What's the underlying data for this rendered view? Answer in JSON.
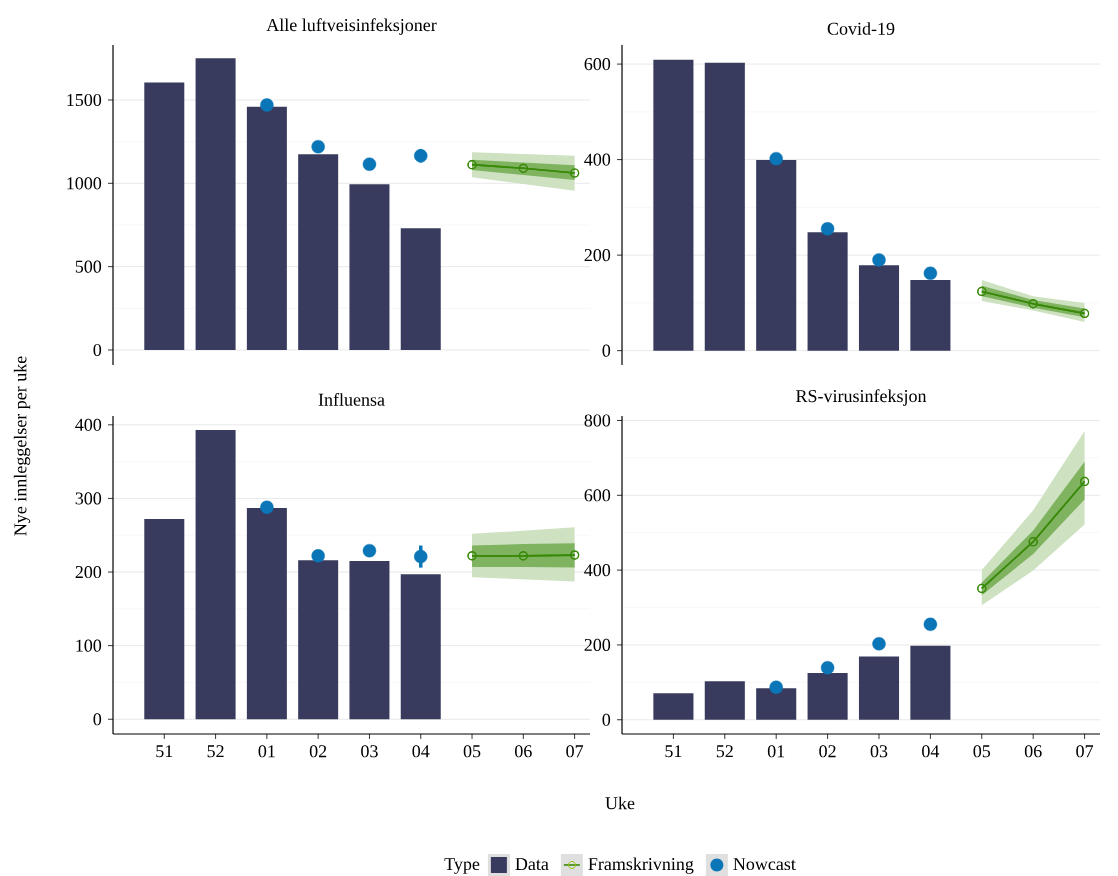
{
  "chart_data": [
    {
      "type": "bar",
      "title": "Alle luftveisinfeksjoner",
      "ylabel": "Nye innleggelser per uke",
      "categories": [
        "51",
        "52",
        "01",
        "02",
        "03",
        "04",
        "05",
        "06",
        "07"
      ],
      "ylim": [
        -90,
        1830
      ],
      "yticks": [
        0,
        500,
        1000,
        1500
      ],
      "grid": "y",
      "tick_labels": "y",
      "series": [
        {
          "color": "#383b5e",
          "values": [
            1605,
            1750,
            1460,
            1175,
            995,
            730,
            null,
            null,
            null
          ]
        },
        {
          "type": "line",
          "color": "#3a8a0a",
          "marker": "circle",
          "values": [
            null,
            null,
            null,
            null,
            null,
            null,
            1112,
            1090,
            1062
          ],
          "lower": [
            null,
            null,
            null,
            null,
            null,
            null,
            1036,
            996,
            956
          ],
          "upper": [
            null,
            null,
            null,
            null,
            null,
            null,
            1186,
            1176,
            1166
          ]
        },
        {
          "type": "line",
          "color": "#3a8a0a",
          "marker": "circle",
          "values": [
            null,
            null,
            null,
            null,
            null,
            null,
            1112,
            1090,
            1062
          ],
          "lower": [
            null,
            null,
            null,
            null,
            null,
            null,
            1080,
            1050,
            1020
          ],
          "upper": [
            null,
            null,
            null,
            null,
            null,
            null,
            1142,
            1125,
            1108
          ]
        },
        {
          "type": "scatter",
          "color": "#0b76b7",
          "values": [
            null,
            null,
            1470,
            1220,
            1115,
            1165,
            null,
            null,
            null
          ],
          "errors": [
            null,
            null,
            null,
            null,
            null,
            [
              1125,
              1205
            ],
            null,
            null,
            null
          ]
        }
      ]
    },
    {
      "type": "bar",
      "title": "Covid-19",
      "categories": [
        "51",
        "52",
        "01",
        "02",
        "03",
        "04",
        "05",
        "06",
        "07"
      ],
      "ylim": [
        -30,
        640
      ],
      "yticks": [
        0,
        200,
        400,
        600
      ],
      "grid": "y",
      "tick_labels": "y",
      "series": [
        {
          "color": "#383b5e",
          "values": [
            609,
            603,
            399,
            248,
            179,
            148,
            null,
            null,
            null
          ]
        },
        {
          "type": "line",
          "color": "#3a8a0a",
          "marker": "circle",
          "values": [
            null,
            null,
            null,
            null,
            null,
            null,
            124,
            98,
            78
          ],
          "lower": [
            null,
            null,
            null,
            null,
            null,
            null,
            104,
            84,
            60
          ],
          "upper": [
            null,
            null,
            null,
            null,
            null,
            null,
            148,
            114,
            100
          ]
        },
        {
          "type": "line",
          "color": "#3a8a0a",
          "marker": "circle",
          "values": [
            null,
            null,
            null,
            null,
            null,
            null,
            124,
            98,
            78
          ],
          "lower": [
            null,
            null,
            null,
            null,
            null,
            null,
            114,
            90,
            70
          ],
          "upper": [
            null,
            null,
            null,
            null,
            null,
            null,
            136,
            106,
            88
          ]
        },
        {
          "type": "scatter",
          "color": "#0b76b7",
          "values": [
            null,
            null,
            402,
            255,
            190,
            162,
            null,
            null,
            null
          ]
        }
      ]
    },
    {
      "type": "bar",
      "title": "Influensa",
      "xlabel": "Uke",
      "categories": [
        "51",
        "52",
        "01",
        "02",
        "03",
        "04",
        "05",
        "06",
        "07"
      ],
      "ylim": [
        -20,
        412
      ],
      "yticks": [
        0,
        100,
        200,
        300,
        400
      ],
      "grid": "y",
      "series": [
        {
          "color": "#383b5e",
          "values": [
            272,
            393,
            287,
            216,
            215,
            197,
            null,
            null,
            null
          ]
        },
        {
          "type": "line",
          "color": "#3a8a0a",
          "marker": "circle",
          "values": [
            null,
            null,
            null,
            null,
            null,
            null,
            222,
            222,
            223
          ],
          "lower": [
            null,
            null,
            null,
            null,
            null,
            null,
            193,
            190,
            187
          ],
          "upper": [
            null,
            null,
            null,
            null,
            null,
            null,
            252,
            256,
            261
          ]
        },
        {
          "type": "line",
          "color": "#3a8a0a",
          "marker": "circle",
          "values": [
            null,
            null,
            null,
            null,
            null,
            null,
            222,
            222,
            223
          ],
          "lower": [
            null,
            null,
            null,
            null,
            null,
            null,
            207,
            207,
            206
          ],
          "upper": [
            null,
            null,
            null,
            null,
            null,
            null,
            236,
            238,
            239
          ]
        },
        {
          "type": "scatter",
          "color": "#0b76b7",
          "values": [
            null,
            null,
            288,
            222,
            229,
            221,
            null,
            null,
            null
          ],
          "errors": [
            null,
            null,
            null,
            null,
            null,
            [
              206,
              236
            ],
            null,
            null,
            null
          ]
        }
      ]
    },
    {
      "type": "bar",
      "title": "RS-virusinfeksjon",
      "legend": "bottom",
      "legend_title": "Type",
      "categories": [
        "51",
        "52",
        "01",
        "02",
        "03",
        "04",
        "05",
        "06",
        "07"
      ],
      "ylim": [
        -38,
        812
      ],
      "yticks": [
        0,
        200,
        400,
        600,
        800
      ],
      "grid": "y",
      "series": [
        {
          "name": "Data",
          "color": "#383b5e",
          "values": [
            71,
            103,
            84,
            125,
            169,
            198,
            null,
            null,
            null
          ]
        },
        {
          "type": "line",
          "color": "#3a8a0a",
          "marker": "circle",
          "values": [
            null,
            null,
            null,
            null,
            null,
            null,
            351,
            476,
            637
          ],
          "lower": [
            null,
            null,
            null,
            null,
            null,
            null,
            306,
            399,
            522
          ],
          "upper": [
            null,
            null,
            null,
            null,
            null,
            null,
            400,
            560,
            772
          ]
        },
        {
          "name": "Framskrivning",
          "type": "line",
          "color": "#3a8a0a",
          "marker": "circle",
          "values": [
            null,
            null,
            null,
            null,
            null,
            null,
            351,
            476,
            637
          ],
          "lower": [
            null,
            null,
            null,
            null,
            null,
            null,
            333,
            443,
            589
          ],
          "upper": [
            null,
            null,
            null,
            null,
            null,
            null,
            367,
            506,
            690
          ]
        },
        {
          "name": "Nowcast",
          "type": "scatter",
          "color": "#0b76b7",
          "values": [
            null,
            null,
            87,
            139,
            203,
            255,
            null,
            null,
            null
          ],
          "errors": [
            null,
            null,
            null,
            null,
            null,
            [
              240,
              272
            ],
            null,
            null,
            null
          ]
        }
      ]
    }
  ]
}
